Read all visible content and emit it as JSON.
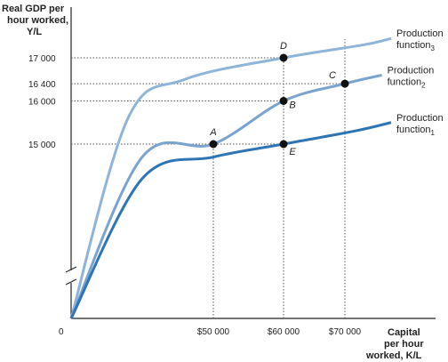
{
  "chart_data": {
    "type": "line",
    "ylabel": [
      "Real GDP per",
      "hour worked,",
      "Y/L"
    ],
    "xlabel": [
      "Capital",
      "per hour",
      "worked, K/L"
    ],
    "origin_label": "0",
    "x_ticks": [
      {
        "value": 50000,
        "label": "$50 000"
      },
      {
        "value": 60000,
        "label": "$60 000"
      },
      {
        "value": 70000,
        "label": "$70 000"
      }
    ],
    "y_ticks": [
      {
        "value": 17000,
        "label": "17 000"
      },
      {
        "value": 16400,
        "label": "16 400"
      },
      {
        "value": 16000,
        "label": "16 000"
      },
      {
        "value": 15000,
        "label": "15 000"
      }
    ],
    "y_axis_break": true,
    "series": [
      {
        "name": "Production function",
        "subscript": "3",
        "color": "#8eb4da",
        "points": [
          [
            0,
            0
          ],
          [
            20000,
            15600
          ],
          [
            40000,
            16500
          ],
          [
            60000,
            17000
          ],
          [
            80000,
            17300
          ],
          [
            95000,
            17450
          ]
        ]
      },
      {
        "name": "Production function",
        "subscript": "2",
        "color": "#7aa3cf",
        "points": [
          [
            0,
            0
          ],
          [
            25000,
            14700
          ],
          [
            50000,
            15000
          ],
          [
            60000,
            16000
          ],
          [
            70000,
            16400
          ],
          [
            90000,
            16600
          ]
        ]
      },
      {
        "name": "Production function",
        "subscript": "1",
        "color": "#2e75b6",
        "points": [
          [
            0,
            0
          ],
          [
            25000,
            14200
          ],
          [
            50000,
            14700
          ],
          [
            60000,
            15000
          ],
          [
            75000,
            15300
          ],
          [
            95000,
            15500
          ]
        ]
      }
    ],
    "points": [
      {
        "label": "A",
        "x": 50000,
        "y": 15000,
        "series": 1
      },
      {
        "label": "B",
        "x": 60000,
        "y": 16000,
        "series": 1
      },
      {
        "label": "C",
        "x": 70000,
        "y": 16400,
        "series": 1
      },
      {
        "label": "D",
        "x": 60000,
        "y": 17000,
        "series": 0
      },
      {
        "label": "E",
        "x": 60000,
        "y": 15000,
        "series": 2
      }
    ]
  }
}
